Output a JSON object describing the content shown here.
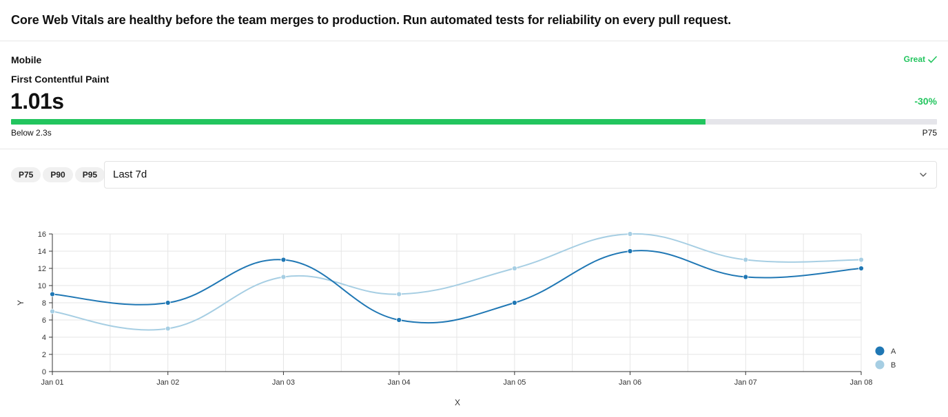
{
  "header": {
    "message": "Core Web Vitals are healthy before the team merges to production. Run automated tests for reliability on every pull request."
  },
  "metric": {
    "device": "Mobile",
    "status": "Great",
    "status_icon": "check-icon",
    "name": "First Contentful Paint",
    "value": "1.01s",
    "delta": "-30%",
    "progress": 0.75,
    "threshold_label": "Below 2.3s",
    "percentile_label": "P75",
    "colors": {
      "good": "#22c55e",
      "track": "#e5e5ea"
    }
  },
  "controls": {
    "percentiles": [
      "P75",
      "P90",
      "P95"
    ],
    "range_value": "Last 7d",
    "range_icon": "chevron-down-icon"
  },
  "chart_data": {
    "type": "line",
    "title": "",
    "xlabel": "X",
    "ylabel": "Y",
    "categories": [
      "Jan 01",
      "Jan 02",
      "Jan 03",
      "Jan 04",
      "Jan 05",
      "Jan 06",
      "Jan 07",
      "Jan 08"
    ],
    "y_ticks": [
      0,
      2,
      4,
      6,
      8,
      10,
      12,
      14,
      16
    ],
    "ylim": [
      0,
      16
    ],
    "grid": true,
    "legend_position": "bottom-right",
    "series": [
      {
        "name": "A",
        "color": "#1f77b4",
        "values": [
          9,
          8,
          13,
          6,
          8,
          14,
          11,
          12
        ]
      },
      {
        "name": "B",
        "color": "#a6cee3",
        "values": [
          7,
          5,
          11,
          9,
          12,
          16,
          13,
          13
        ]
      }
    ]
  }
}
